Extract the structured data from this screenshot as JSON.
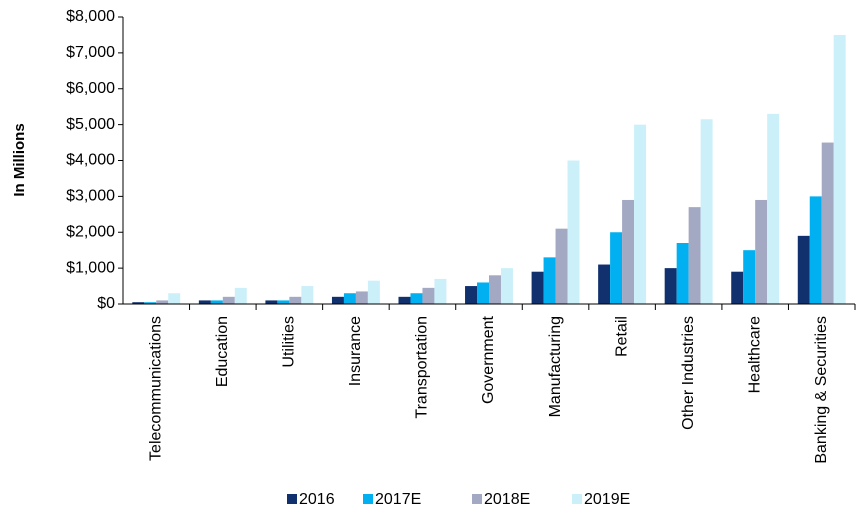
{
  "chart_data": {
    "type": "bar",
    "y_axis_label": "In Millions",
    "categories": [
      "Telecommunications",
      "Education",
      "Utilities",
      "Insurance",
      "Transportation",
      "Government",
      "Manufacturing",
      "Retail",
      "Other Industries",
      "Healthcare",
      "Banking & Securities"
    ],
    "series": [
      {
        "name": "2016",
        "color": "#10306e",
        "values": [
          50,
          100,
          100,
          200,
          200,
          500,
          900,
          1100,
          1000,
          900,
          1900
        ]
      },
      {
        "name": "2017E",
        "color": "#00b0f0",
        "values": [
          50,
          100,
          100,
          300,
          300,
          600,
          1300,
          2000,
          1700,
          1500,
          3000
        ]
      },
      {
        "name": "2018E",
        "color": "#a3a8c3",
        "values": [
          100,
          200,
          200,
          350,
          450,
          800,
          2100,
          2900,
          2700,
          2900,
          4500
        ]
      },
      {
        "name": "2019E",
        "color": "#ccf0fa",
        "values": [
          300,
          450,
          500,
          650,
          700,
          1000,
          4000,
          5000,
          5150,
          5300,
          7500
        ]
      }
    ],
    "ylim": [
      0,
      8000
    ],
    "yticks": [
      {
        "value": 0,
        "label": "$0"
      },
      {
        "value": 1000,
        "label": "$1,000"
      },
      {
        "value": 2000,
        "label": "$2,000"
      },
      {
        "value": 3000,
        "label": "$3,000"
      },
      {
        "value": 4000,
        "label": "$4,000"
      },
      {
        "value": 5000,
        "label": "$5,000"
      },
      {
        "value": 6000,
        "label": "$6,000"
      },
      {
        "value": 7000,
        "label": "$7,000"
      },
      {
        "value": 8000,
        "label": "$8,000"
      }
    ],
    "grid": false,
    "legend": "bottom"
  }
}
